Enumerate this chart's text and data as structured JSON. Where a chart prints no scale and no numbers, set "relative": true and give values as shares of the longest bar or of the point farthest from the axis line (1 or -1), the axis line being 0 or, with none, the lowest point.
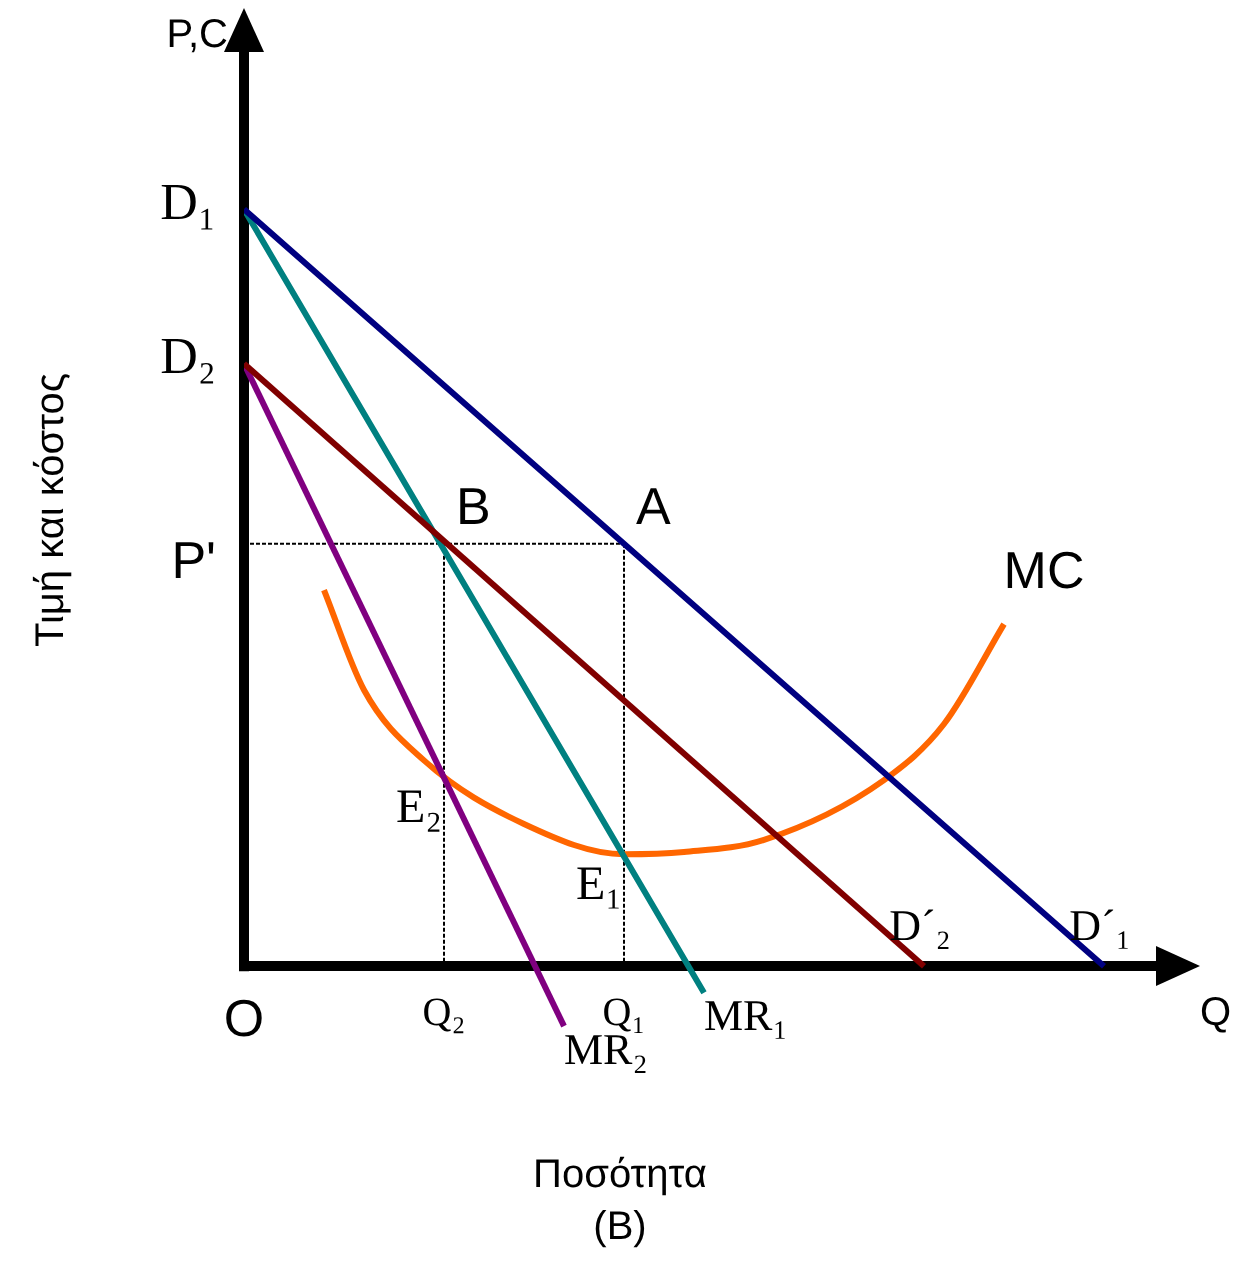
{
  "chart_data": {
    "type": "line",
    "relative": true,
    "xlabel": "Ποσότητα",
    "ylabel": "Τιμή και κόστος",
    "title": "(B)",
    "legend": false,
    "marker": "none",
    "categories": [
      "O",
      null,
      null,
      null,
      null,
      null,
      null,
      null,
      null,
      null,
      "Q₂",
      null,
      null,
      null,
      null,
      null,
      null,
      null,
      null,
      "Q₁",
      null,
      null,
      null,
      null,
      null,
      null,
      null,
      null,
      null,
      null,
      null,
      null,
      null,
      null,
      null,
      null,
      null,
      null,
      null,
      null,
      null,
      null,
      null,
      null,
      null,
      null,
      null,
      null
    ],
    "series": [
      {
        "name": "D´₁",
        "color": "#000080",
        "values": [
          1,
          null,
          null,
          null,
          null,
          null,
          null,
          null,
          null,
          null,
          null,
          null,
          null,
          null,
          null,
          null,
          null,
          null,
          null,
          null,
          null,
          null,
          null,
          null,
          null,
          null,
          null,
          null,
          null,
          null,
          null,
          null,
          null,
          null,
          null,
          null,
          null,
          null,
          null,
          null,
          null,
          null,
          null,
          0,
          null,
          null,
          null,
          null
        ]
      },
      {
        "name": "D´₂",
        "color": "#800000",
        "values": [
          0.796,
          null,
          null,
          null,
          null,
          null,
          null,
          null,
          null,
          null,
          null,
          null,
          null,
          null,
          null,
          null,
          null,
          null,
          null,
          null,
          null,
          null,
          null,
          null,
          null,
          null,
          null,
          null,
          null,
          null,
          null,
          null,
          null,
          null,
          0,
          null,
          null,
          null,
          null,
          null,
          null,
          null,
          null,
          null,
          null,
          null,
          null,
          null
        ]
      },
      {
        "name": "MR₁",
        "color": "#008080",
        "values": [
          1,
          null,
          null,
          null,
          null,
          null,
          null,
          null,
          null,
          null,
          null,
          null,
          null,
          null,
          null,
          null,
          null,
          null,
          null,
          null,
          null,
          null,
          null,
          -0.035,
          null,
          null,
          null,
          null,
          null,
          null,
          null,
          null,
          null,
          null,
          null,
          null,
          null,
          null,
          null,
          null,
          null,
          null,
          null,
          null,
          null,
          null,
          null,
          null
        ]
      },
      {
        "name": "MR₂",
        "color": "#800080",
        "values": [
          0.796,
          null,
          null,
          null,
          null,
          null,
          null,
          null,
          null,
          null,
          null,
          null,
          null,
          null,
          null,
          null,
          -0.079,
          null,
          null,
          null,
          null,
          null,
          null,
          null,
          null,
          null,
          null,
          null,
          null,
          null,
          null,
          null,
          null,
          null,
          null,
          null,
          null,
          null,
          null,
          null,
          null,
          null,
          null,
          null,
          null,
          null,
          null,
          null
        ]
      },
      {
        "name": "MC",
        "color": "#ff6600",
        "values": [
          null,
          null,
          null,
          null,
          0.497,
          null,
          0.365,
          null,
          null,
          0.272,
          null,
          null,
          null,
          null,
          0.188,
          null,
          null,
          null,
          null,
          0.148,
          null,
          null,
          0.151,
          null,
          null,
          null,
          0.167,
          null,
          null,
          null,
          null,
          null,
          0.246,
          null,
          null,
          0.32,
          null,
          null,
          0.452,
          null,
          null,
          null,
          null,
          null,
          null,
          null,
          null,
          null
        ]
      },
      {
        "color": "#000000",
        "line_style": "dotted",
        "values": [
          0.558,
          null,
          null,
          null,
          null,
          null,
          null,
          null,
          null,
          null,
          null,
          null,
          null,
          null,
          null,
          null,
          null,
          null,
          null,
          0.558,
          null,
          null,
          null,
          null,
          null,
          null,
          null,
          null,
          null,
          null,
          null,
          null,
          null,
          null,
          null,
          null,
          null,
          null,
          null,
          null,
          null,
          null,
          null,
          null,
          null,
          null,
          null,
          null
        ]
      },
      {
        "color": "#000000",
        "line_style": "dotted",
        "x": [
          "Q₂",
          "Q₂"
        ],
        "values": [
          0.558,
          0
        ]
      },
      {
        "color": "#000000",
        "line_style": "dotted",
        "x": [
          "Q₁",
          "Q₁"
        ],
        "values": [
          0.558,
          0
        ]
      }
    ],
    "annotations": [
      "P,C",
      "Q",
      "D₁",
      "D₂",
      "P'",
      {
        "text": "A",
        "x": "Q₁",
        "y": 0.558
      },
      {
        "text": "B",
        "x": "Q₂",
        "y": 0.558
      },
      {
        "text": "E₂",
        "x": "Q₂",
        "y": 0.25
      },
      {
        "text": "E₁",
        "x": "Q₁",
        "y": 0.148
      }
    ]
  }
}
